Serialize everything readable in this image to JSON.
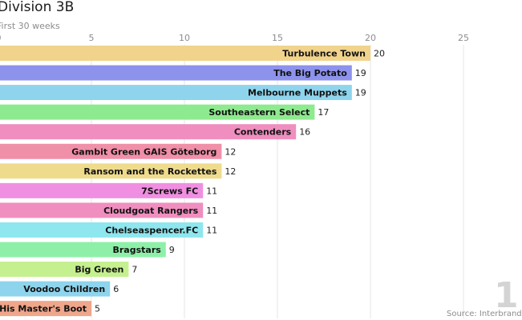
{
  "title": "Division 3B",
  "subtitle": "First 30 weeks",
  "source": "Source: Interbrand",
  "corner_label": "1",
  "chart_data": {
    "type": "bar",
    "orientation": "horizontal",
    "xlim": [
      0,
      28
    ],
    "x_ticks": [
      0,
      5,
      10,
      15,
      20,
      25
    ],
    "x_tick_labels": [
      "0",
      "5",
      "10",
      "15",
      "20",
      "25"
    ],
    "grid": true,
    "categories": [
      "Turbulence Town",
      "The Big Potato",
      "Melbourne Muppets",
      "Southeastern Select",
      "Contenders",
      "Gambit Green GAIS Göteborg",
      "Ransom and the Rockettes",
      "7Screws FC",
      "Cloudgoat Rangers",
      "Chelseaspencer.FC",
      "Bragstars",
      "Big Green",
      "Voodoo Children",
      "His Master's Boot"
    ],
    "values": [
      20,
      19,
      19,
      17,
      16,
      12,
      12,
      11,
      11,
      11,
      9,
      7,
      6,
      5
    ],
    "value_labels": [
      "20",
      "19",
      "19",
      "17",
      "16",
      "12",
      "12",
      "11",
      "11",
      "11",
      "9",
      "7",
      "6",
      "5"
    ],
    "colors": [
      "#f1d38c",
      "#8d92ec",
      "#8ed4ec",
      "#8eea8e",
      "#ef8ebf",
      "#f08fa8",
      "#efdb8c",
      "#f08fe1",
      "#ef8ebf",
      "#8ee6ee",
      "#8ef0a8",
      "#c5f08f",
      "#8ed4ec",
      "#efa68a"
    ]
  }
}
